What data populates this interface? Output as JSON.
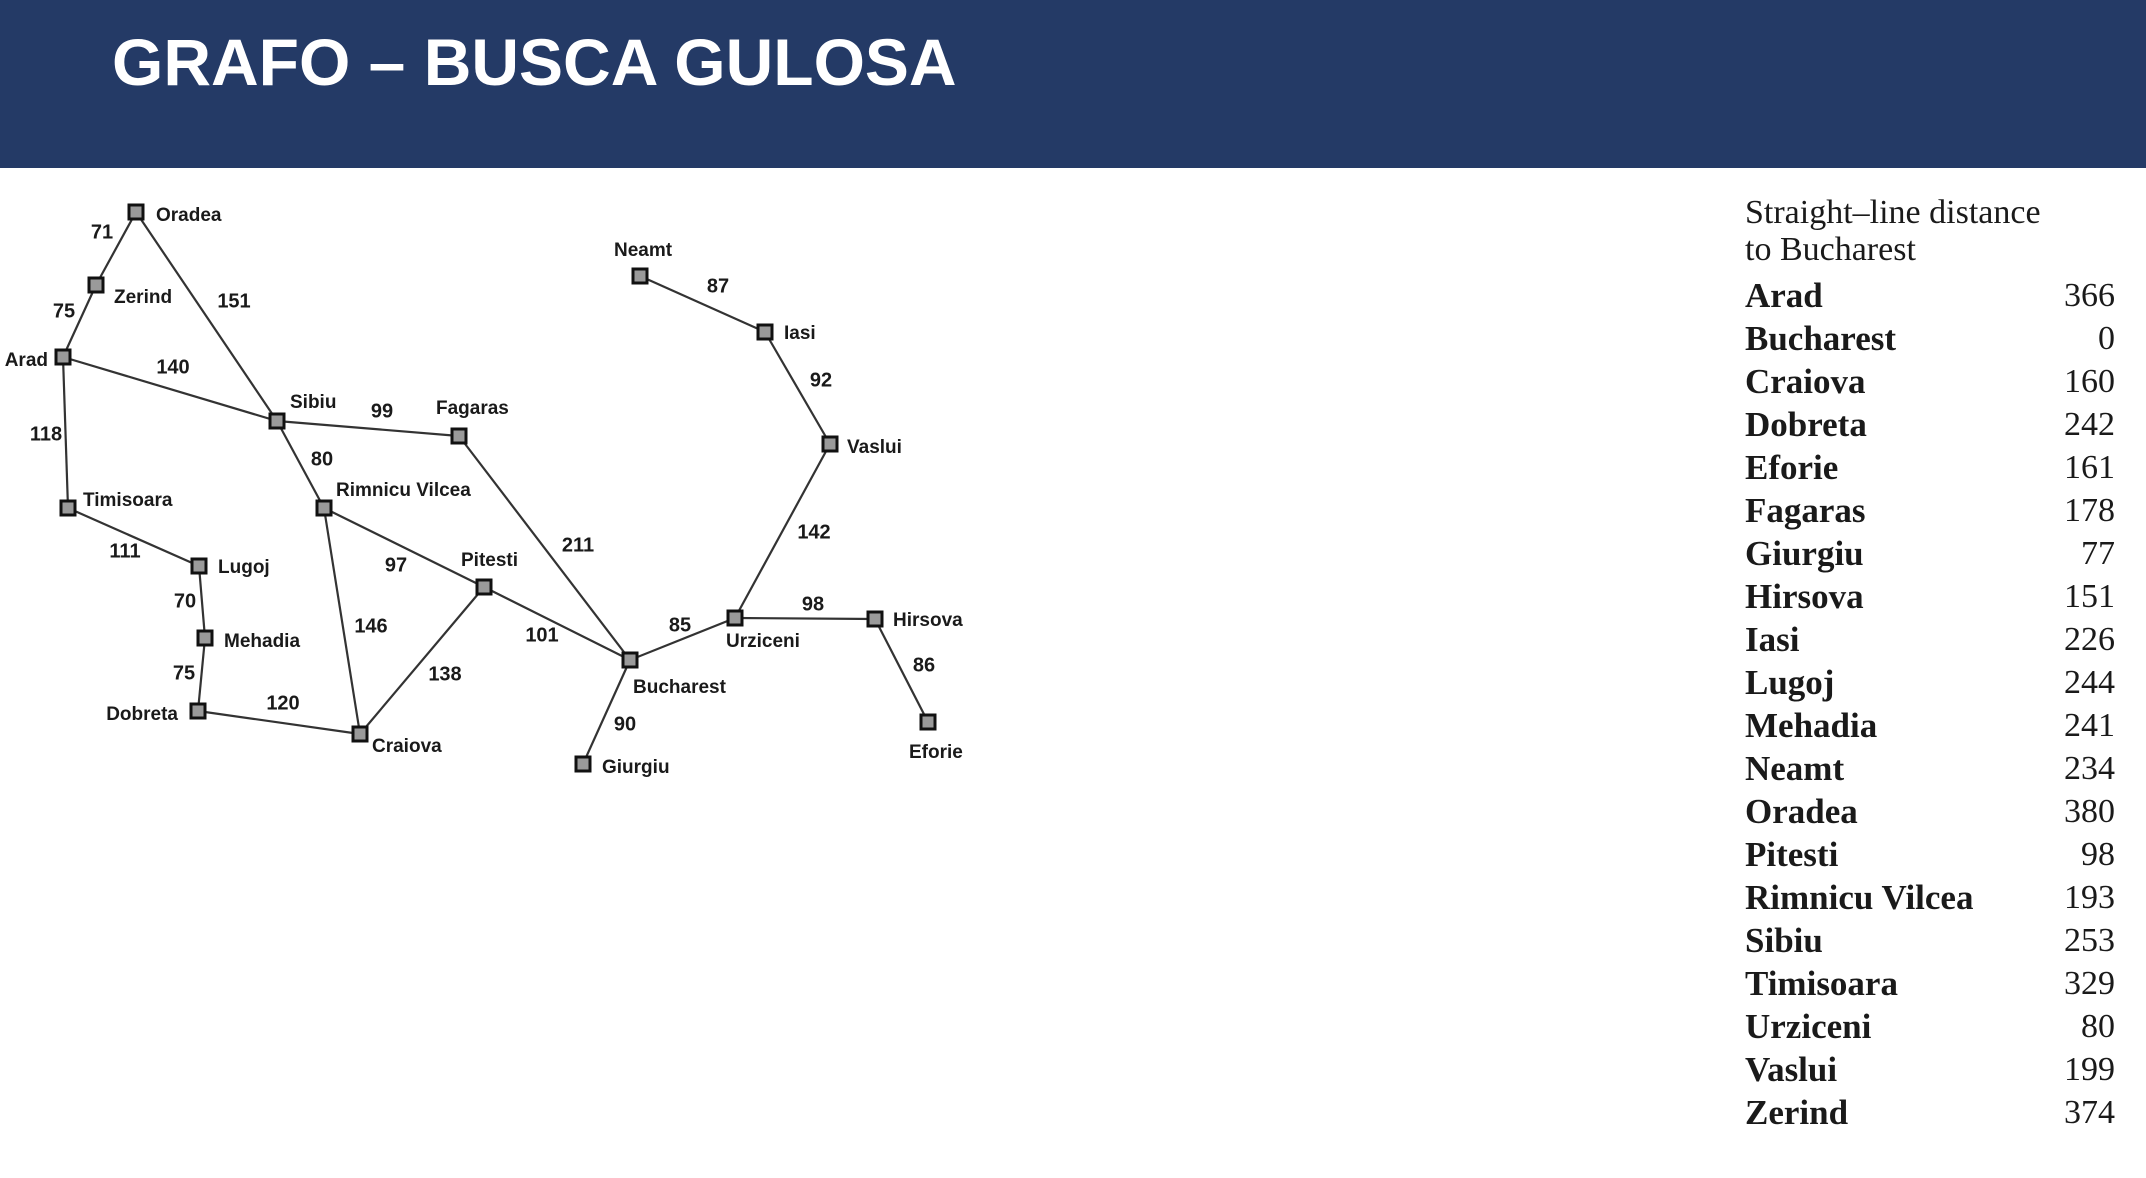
{
  "slide": {
    "title": "GRAFO – BUSCA GULOSA",
    "header_color": "#243a66"
  },
  "graph": {
    "nodes": [
      {
        "id": "oradea",
        "label": "Oradea"
      },
      {
        "id": "zerind",
        "label": "Zerind"
      },
      {
        "id": "arad",
        "label": "Arad"
      },
      {
        "id": "timisoara",
        "label": "Timisoara"
      },
      {
        "id": "lugoj",
        "label": "Lugoj"
      },
      {
        "id": "mehadia",
        "label": "Mehadia"
      },
      {
        "id": "dobreta",
        "label": "Dobreta"
      },
      {
        "id": "sibiu",
        "label": "Sibiu"
      },
      {
        "id": "fagaras",
        "label": "Fagaras"
      },
      {
        "id": "rimnicu",
        "label": "Rimnicu Vilcea"
      },
      {
        "id": "pitesti",
        "label": "Pitesti"
      },
      {
        "id": "craiova",
        "label": "Craiova"
      },
      {
        "id": "bucharest",
        "label": "Bucharest"
      },
      {
        "id": "giurgiu",
        "label": "Giurgiu"
      },
      {
        "id": "urziceni",
        "label": "Urziceni"
      },
      {
        "id": "neamt",
        "label": "Neamt"
      },
      {
        "id": "iasi",
        "label": "Iasi"
      },
      {
        "id": "vaslui",
        "label": "Vaslui"
      },
      {
        "id": "hirsova",
        "label": "Hirsova"
      },
      {
        "id": "eforie",
        "label": "Eforie"
      }
    ],
    "edges": [
      {
        "from": "oradea",
        "to": "zerind",
        "weight": "71"
      },
      {
        "from": "zerind",
        "to": "arad",
        "weight": "75"
      },
      {
        "from": "oradea",
        "to": "sibiu",
        "weight": "151"
      },
      {
        "from": "arad",
        "to": "sibiu",
        "weight": "140"
      },
      {
        "from": "arad",
        "to": "timisoara",
        "weight": "118"
      },
      {
        "from": "timisoara",
        "to": "lugoj",
        "weight": "111"
      },
      {
        "from": "lugoj",
        "to": "mehadia",
        "weight": "70"
      },
      {
        "from": "mehadia",
        "to": "dobreta",
        "weight": "75"
      },
      {
        "from": "dobreta",
        "to": "craiova",
        "weight": "120"
      },
      {
        "from": "sibiu",
        "to": "fagaras",
        "weight": "99"
      },
      {
        "from": "sibiu",
        "to": "rimnicu",
        "weight": "80"
      },
      {
        "from": "rimnicu",
        "to": "pitesti",
        "weight": "97"
      },
      {
        "from": "rimnicu",
        "to": "craiova",
        "weight": "146"
      },
      {
        "from": "craiova",
        "to": "pitesti",
        "weight": "138"
      },
      {
        "from": "pitesti",
        "to": "bucharest",
        "weight": "101"
      },
      {
        "from": "fagaras",
        "to": "bucharest",
        "weight": "211"
      },
      {
        "from": "bucharest",
        "to": "giurgiu",
        "weight": "90"
      },
      {
        "from": "bucharest",
        "to": "urziceni",
        "weight": "85"
      },
      {
        "from": "urziceni",
        "to": "hirsova",
        "weight": "98"
      },
      {
        "from": "hirsova",
        "to": "eforie",
        "weight": "86"
      },
      {
        "from": "urziceni",
        "to": "vaslui",
        "weight": "142"
      },
      {
        "from": "vaslui",
        "to": "iasi",
        "weight": "92"
      },
      {
        "from": "iasi",
        "to": "neamt",
        "weight": "87"
      }
    ]
  },
  "straight_line": {
    "title_line1": "Straight–line distance",
    "title_line2": "to Bucharest",
    "rows": [
      {
        "city": "Arad",
        "value": "366"
      },
      {
        "city": "Bucharest",
        "value": "0"
      },
      {
        "city": "Craiova",
        "value": "160"
      },
      {
        "city": "Dobreta",
        "value": "242"
      },
      {
        "city": "Eforie",
        "value": "161"
      },
      {
        "city": "Fagaras",
        "value": "178"
      },
      {
        "city": "Giurgiu",
        "value": "77"
      },
      {
        "city": "Hirsova",
        "value": "151"
      },
      {
        "city": "Iasi",
        "value": "226"
      },
      {
        "city": "Lugoj",
        "value": "244"
      },
      {
        "city": "Mehadia",
        "value": "241"
      },
      {
        "city": "Neamt",
        "value": "234"
      },
      {
        "city": "Oradea",
        "value": "380"
      },
      {
        "city": "Pitesti",
        "value": "98"
      },
      {
        "city": "Rimnicu Vilcea",
        "value": "193"
      },
      {
        "city": "Sibiu",
        "value": "253"
      },
      {
        "city": "Timisoara",
        "value": "329"
      },
      {
        "city": "Urziceni",
        "value": "80"
      },
      {
        "city": "Vaslui",
        "value": "199"
      },
      {
        "city": "Zerind",
        "value": "374"
      }
    ]
  }
}
